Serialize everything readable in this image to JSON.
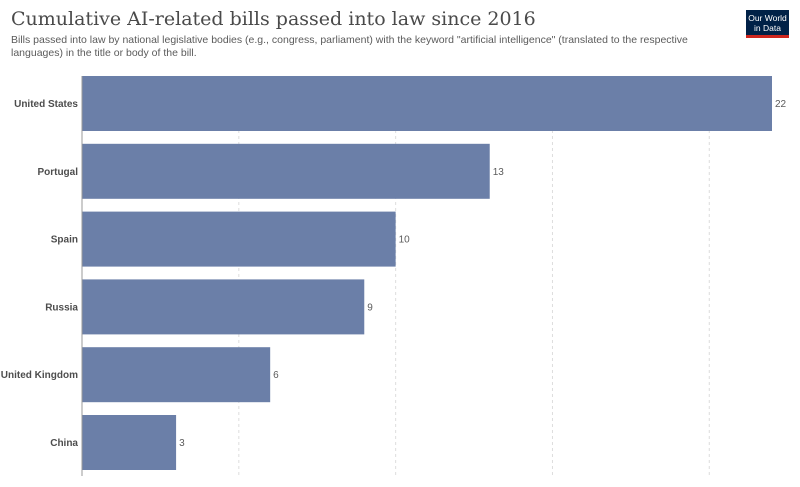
{
  "header": {
    "title": "Cumulative AI-related bills passed into law since 2016",
    "subtitle": "Bills passed into law by national legislative bodies (e.g., congress, parliament) with the keyword \"artificial intelligence\" (translated to the respective languages) in the title or body of the bill.",
    "logo_line1": "Our World",
    "logo_line2": "in Data"
  },
  "colors": {
    "bar": "#6b7fa8",
    "grid": "#dddddd",
    "logo_bg": "#002147",
    "logo_accent": "#ce261e"
  },
  "chart_data": {
    "type": "bar",
    "orientation": "horizontal",
    "categories": [
      "United States",
      "Portugal",
      "Spain",
      "Russia",
      "United Kingdom",
      "China"
    ],
    "values": [
      22,
      13,
      10,
      9,
      6,
      3
    ],
    "title": "Cumulative AI-related bills passed into law since 2016",
    "xlabel": "",
    "ylabel": "",
    "xlim": [
      0,
      22
    ],
    "grid": "vertical dashed",
    "legend": "none"
  }
}
